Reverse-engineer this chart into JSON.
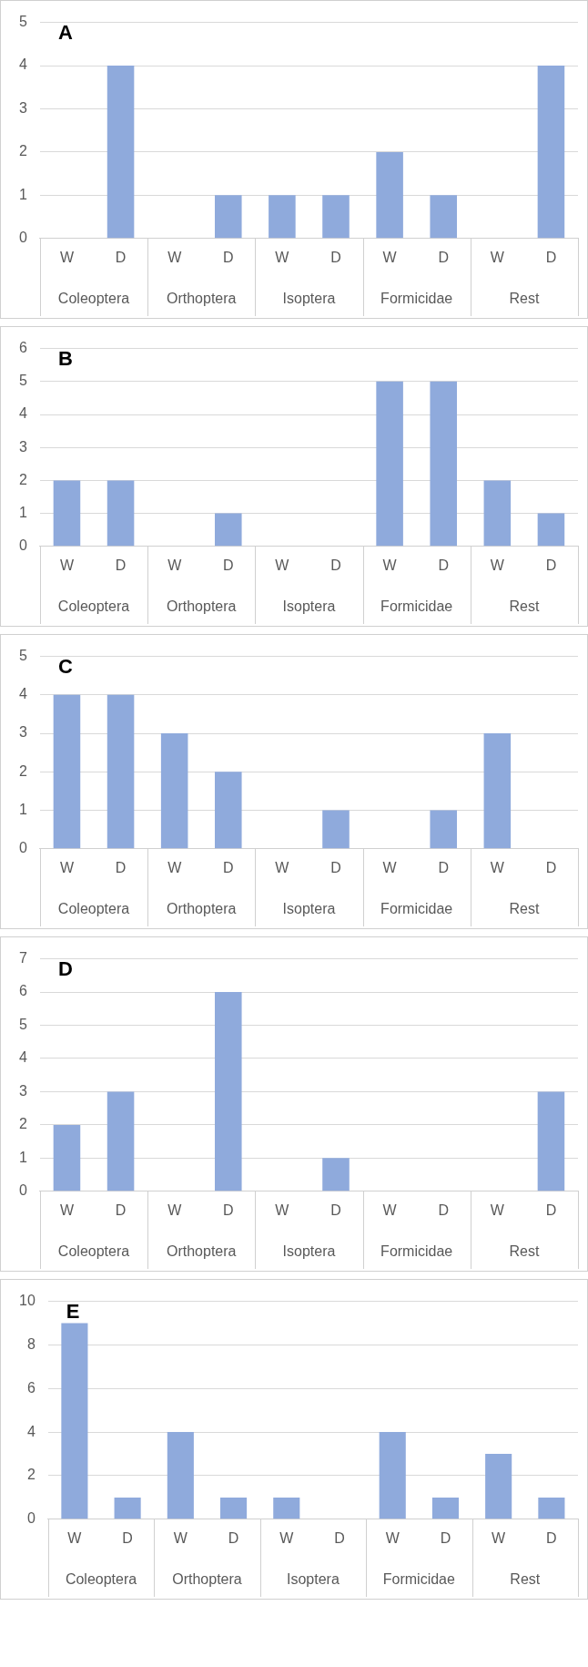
{
  "chart_data": [
    {
      "type": "bar",
      "title": "A",
      "categories": [
        "W",
        "D",
        "W",
        "D",
        "W",
        "D",
        "W",
        "D",
        "W",
        "D"
      ],
      "values": [
        0,
        4,
        0,
        1,
        1,
        1,
        2,
        1,
        0,
        4
      ],
      "color": "#8faadc",
      "ylim": [
        0,
        5
      ],
      "yticks": [
        0,
        1,
        2,
        3,
        4,
        5
      ],
      "grid": "y",
      "annotations": [
        "Coleoptera",
        "Orthoptera",
        "Isoptera",
        "Formicidae",
        "Rest"
      ]
    },
    {
      "type": "bar",
      "title": "B",
      "categories": [
        "W",
        "D",
        "W",
        "D",
        "W",
        "D",
        "W",
        "D",
        "W",
        "D"
      ],
      "values": [
        2,
        2,
        0,
        1,
        0,
        0,
        5,
        5,
        2,
        1
      ],
      "color": "#8faadc",
      "ylim": [
        0,
        6
      ],
      "yticks": [
        0,
        1,
        2,
        3,
        4,
        5,
        6
      ],
      "grid": "y",
      "annotations": [
        "Coleoptera",
        "Orthoptera",
        "Isoptera",
        "Formicidae",
        "Rest"
      ]
    },
    {
      "type": "bar",
      "title": "C",
      "categories": [
        "W",
        "D",
        "W",
        "D",
        "W",
        "D",
        "W",
        "D",
        "W",
        "D"
      ],
      "values": [
        4,
        4,
        3,
        2,
        0,
        1,
        0,
        1,
        3,
        0
      ],
      "color": "#8faadc",
      "ylim": [
        0,
        5
      ],
      "yticks": [
        0,
        1,
        2,
        3,
        4,
        5
      ],
      "grid": "y",
      "annotations": [
        "Coleoptera",
        "Orthoptera",
        "Isoptera",
        "Formicidae",
        "Rest"
      ]
    },
    {
      "type": "bar",
      "title": "D",
      "categories": [
        "W",
        "D",
        "W",
        "D",
        "W",
        "D",
        "W",
        "D",
        "W",
        "D"
      ],
      "values": [
        2,
        3,
        0,
        6,
        0,
        1,
        0,
        0,
        0,
        3
      ],
      "color": "#8faadc",
      "ylim": [
        0,
        7
      ],
      "yticks": [
        0,
        1,
        2,
        3,
        4,
        5,
        6,
        7
      ],
      "grid": "y",
      "annotations": [
        "Coleoptera",
        "Orthoptera",
        "Isoptera",
        "Formicidae",
        "Rest"
      ]
    },
    {
      "type": "bar",
      "title": "E",
      "categories": [
        "W",
        "D",
        "W",
        "D",
        "W",
        "D",
        "W",
        "D",
        "W",
        "D"
      ],
      "values": [
        9,
        1,
        4,
        1,
        1,
        0,
        4,
        1,
        3,
        1
      ],
      "color": "#8faadc",
      "ylim": [
        0,
        10
      ],
      "yticks": [
        0,
        2,
        4,
        6,
        8,
        10
      ],
      "grid": "y",
      "annotations": [
        "Coleoptera",
        "Orthoptera",
        "Isoptera",
        "Formicidae",
        "Rest"
      ]
    }
  ]
}
